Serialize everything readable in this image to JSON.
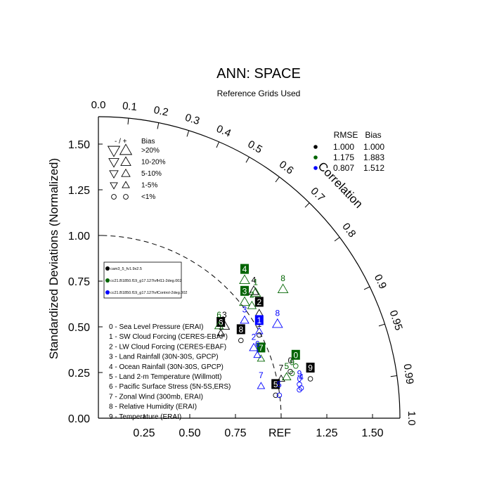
{
  "chart_data": {
    "type": "taylor",
    "title": "ANN: SPACE",
    "subtitle": "Reference Grids Used",
    "ylabel": "Standardized Deviations (Normalized)",
    "arc_label": "Correlation",
    "ref_label": "REF",
    "std_range": [
      0,
      1.65
    ],
    "y_ticks": [
      {
        "value": 0,
        "label": "0.00"
      },
      {
        "value": 0.25,
        "label": "0.25"
      },
      {
        "value": 0.5,
        "label": "0.50"
      },
      {
        "value": 0.75,
        "label": "0.75"
      },
      {
        "value": 1.0,
        "label": "1.00"
      },
      {
        "value": 1.25,
        "label": "1.25"
      },
      {
        "value": 1.5,
        "label": "1.50"
      }
    ],
    "x_ticks": [
      {
        "value": 0.25,
        "label": "0.25"
      },
      {
        "value": 0.5,
        "label": "0.50"
      },
      {
        "value": 0.75,
        "label": "0.75"
      },
      {
        "value": 1.25,
        "label": "1.25"
      },
      {
        "value": 1.5,
        "label": "1.50"
      }
    ],
    "corr_ticks": [
      {
        "value": 0.0,
        "label": "0.0"
      },
      {
        "value": 0.1,
        "label": "0.1"
      },
      {
        "value": 0.2,
        "label": "0.2"
      },
      {
        "value": 0.3,
        "label": "0.3"
      },
      {
        "value": 0.4,
        "label": "0.4"
      },
      {
        "value": 0.5,
        "label": "0.5"
      },
      {
        "value": 0.6,
        "label": "0.6"
      },
      {
        "value": 0.7,
        "label": "0.7"
      },
      {
        "value": 0.8,
        "label": "0.8"
      },
      {
        "value": 0.9,
        "label": "0.9"
      },
      {
        "value": 0.95,
        "label": "0.95"
      },
      {
        "value": 0.99,
        "label": "0.99"
      },
      {
        "value": 1.0,
        "label": "1.0"
      }
    ],
    "bias_legend": {
      "header_sign": "- / +",
      "header_bias": "Bias",
      "rows": [
        {
          "label": ">20%",
          "size": 1.0
        },
        {
          "label": "10-20%",
          "size": 0.75
        },
        {
          "label": "5-10%",
          "size": 0.55
        },
        {
          "label": "1-5%",
          "size": 0.38
        },
        {
          "label": "<1%",
          "size": 0.0
        }
      ]
    },
    "rmse_table": {
      "header_rmse": "RMSE",
      "header_bias": "Bias",
      "rows": [
        {
          "color": "#000000",
          "rmse": "1.000",
          "bias": "1.000"
        },
        {
          "color": "#006400",
          "rmse": "1.175",
          "bias": "1.883"
        },
        {
          "color": "#0000ff",
          "rmse": "0.807",
          "bias": "1.512"
        }
      ]
    },
    "series": [
      {
        "name": "cam3_5_fv1.9x2.5",
        "color": "#000000"
      },
      {
        "name": "cc21.B1850.f19_g17.127tvfH11-2deg.002",
        "color": "#006400"
      },
      {
        "name": "cc21.B1850.f19_g17.127tvfControl-2deg.002",
        "color": "#0000ff"
      }
    ],
    "variables": [
      "0 - Sea Level Pressure (ERAI)",
      "1 - SW Cloud Forcing (CERES-EBAF)",
      "2 - LW Cloud Forcing (CERES-EBAF)",
      "3 - Land Rainfall (30N-30S, GPCP)",
      "4 - Ocean Rainfall (30N-30S, GPCP)",
      "5 - Land 2-m Temperature (Willmott)",
      "6 - Pacific Surface Stress (5N-5S,ERS)",
      "7 - Zonal Wind (300mb, ERAI)",
      "8 - Relative Humidity (ERAI)",
      "9 - Temperature (ERAI)"
    ],
    "points": [
      {
        "series": 0,
        "label": "0",
        "x": 1.05,
        "y": 0.29,
        "boxed": false,
        "marker": "circle",
        "size": 0.0
      },
      {
        "series": 0,
        "label": "1",
        "x": 0.88,
        "y": 0.49,
        "boxed": false,
        "marker": "circle",
        "size": 0.0
      },
      {
        "series": 0,
        "label": "2",
        "x": 0.88,
        "y": 0.61,
        "boxed": true,
        "marker": "tri-up",
        "size": 0.38
      },
      {
        "series": 0,
        "label": "3",
        "x": 0.69,
        "y": 0.54,
        "boxed": false,
        "marker": "tri-up",
        "size": 0.75
      },
      {
        "series": 0,
        "label": "4",
        "x": 0.85,
        "y": 0.73,
        "boxed": false,
        "marker": "tri-up",
        "size": 0.75
      },
      {
        "series": 0,
        "label": "5",
        "x": 0.97,
        "y": 0.16,
        "boxed": true,
        "marker": "circle",
        "size": 0.0
      },
      {
        "series": 0,
        "label": "6",
        "x": 0.67,
        "y": 0.5,
        "boxed": true,
        "marker": "tri-up",
        "size": 0.38
      },
      {
        "series": 0,
        "label": "7",
        "x": 1.0,
        "y": 0.25,
        "boxed": false,
        "marker": "tri-up",
        "size": 0.38
      },
      {
        "series": 0,
        "label": "8",
        "x": 0.78,
        "y": 0.46,
        "boxed": true,
        "marker": "circle",
        "size": 0.0
      },
      {
        "series": 0,
        "label": "9",
        "x": 1.16,
        "y": 0.25,
        "boxed": true,
        "marker": "circle",
        "size": 0.0
      },
      {
        "series": 1,
        "label": "0",
        "x": 1.08,
        "y": 0.32,
        "boxed": true,
        "marker": "circle",
        "size": 0.0
      },
      {
        "series": 1,
        "label": "1",
        "x": 0.86,
        "y": 0.72,
        "boxed": false,
        "marker": "tri-up",
        "size": 0.75
      },
      {
        "series": 1,
        "label": "2",
        "x": 0.84,
        "y": 0.65,
        "boxed": false,
        "marker": "tri-up",
        "size": 0.55
      },
      {
        "series": 1,
        "label": "3",
        "x": 0.8,
        "y": 0.67,
        "boxed": true,
        "marker": "tri-up",
        "size": 0.75
      },
      {
        "series": 1,
        "label": "4",
        "x": 0.8,
        "y": 0.79,
        "boxed": true,
        "marker": "tri-up",
        "size": 0.75
      },
      {
        "series": 1,
        "label": "5",
        "x": 1.03,
        "y": 0.26,
        "boxed": false,
        "marker": "tri-up",
        "size": 0.55
      },
      {
        "series": 1,
        "label": "6",
        "x": 0.66,
        "y": 0.54,
        "boxed": false,
        "marker": "tri-up",
        "size": 0.55
      },
      {
        "series": 1,
        "label": "7",
        "x": 0.89,
        "y": 0.36,
        "boxed": true,
        "marker": "tri-up",
        "size": 0.38
      },
      {
        "series": 1,
        "label": "8",
        "x": 1.01,
        "y": 0.74,
        "boxed": false,
        "marker": "tri-up",
        "size": 0.75
      },
      {
        "series": 1,
        "label": "9",
        "x": 1.06,
        "y": 0.28,
        "boxed": false,
        "marker": "circle",
        "size": 0.0
      },
      {
        "series": 2,
        "label": "0",
        "x": 1.1,
        "y": 0.19,
        "boxed": false,
        "marker": "circle",
        "size": 0.0
      },
      {
        "series": 2,
        "label": "1",
        "x": 0.88,
        "y": 0.51,
        "boxed": true,
        "marker": "tri-up",
        "size": 0.38
      },
      {
        "series": 2,
        "label": "2",
        "x": 0.85,
        "y": 0.42,
        "boxed": false,
        "marker": "tri-up",
        "size": 0.55
      },
      {
        "series": 2,
        "label": "3",
        "x": 0.8,
        "y": 0.57,
        "boxed": false,
        "marker": "tri-up",
        "size": 0.55
      },
      {
        "series": 2,
        "label": "4",
        "x": 1.11,
        "y": 0.2,
        "boxed": false,
        "marker": "circle",
        "size": 0.0
      },
      {
        "series": 2,
        "label": "5",
        "x": 0.99,
        "y": 0.16,
        "boxed": false,
        "marker": "circle",
        "size": 0.0
      },
      {
        "series": 2,
        "label": "6",
        "x": 0.87,
        "y": 0.38,
        "boxed": false,
        "marker": "tri-up",
        "size": 0.38
      },
      {
        "series": 2,
        "label": "7",
        "x": 0.89,
        "y": 0.21,
        "boxed": false,
        "marker": "tri-up",
        "size": 0.38
      },
      {
        "series": 2,
        "label": "8",
        "x": 0.98,
        "y": 0.55,
        "boxed": false,
        "marker": "tri-up",
        "size": 0.75
      },
      {
        "series": 2,
        "label": "9",
        "x": 1.1,
        "y": 0.22,
        "boxed": false,
        "marker": "circle",
        "size": 0.0
      }
    ]
  }
}
